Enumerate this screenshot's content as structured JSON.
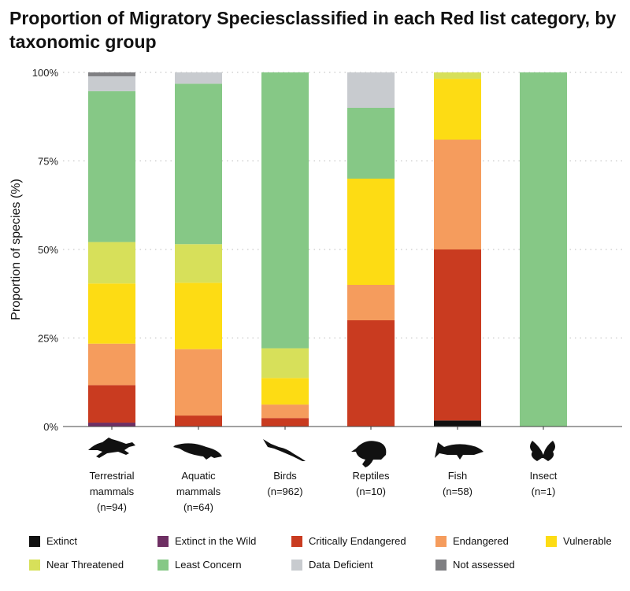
{
  "chart_data": {
    "type": "bar",
    "stacked": true,
    "title": "Proportion of Migratory Speciesclassified in each Red list category, by taxonomic group",
    "ylabel": "Proportion of species (%)",
    "xlabel": "",
    "ylim": [
      0,
      100
    ],
    "yticks": [
      "0%",
      "25%",
      "50%",
      "75%",
      "100%"
    ],
    "grid": "horizontal dotted",
    "legend_placement": "bottom",
    "categories": [
      {
        "label1": "Terrestrial",
        "label2": "mammals",
        "n": "(n=94)",
        "icon": "running-mammal-icon"
      },
      {
        "label1": "Aquatic",
        "label2": "mammals",
        "n": "(n=64)",
        "icon": "whale-icon"
      },
      {
        "label1": "Birds",
        "label2": "",
        "n": "(n=962)",
        "icon": "bird-icon"
      },
      {
        "label1": "Reptiles",
        "label2": "",
        "n": "(n=10)",
        "icon": "turtle-icon"
      },
      {
        "label1": "Fish",
        "label2": "",
        "n": "(n=58)",
        "icon": "shark-icon"
      },
      {
        "label1": "Insect",
        "label2": "",
        "n": "(n=1)",
        "icon": "butterfly-icon"
      }
    ],
    "series": [
      {
        "name": "Extinct",
        "color": "#111111",
        "values": [
          0,
          0,
          0,
          0,
          1.7,
          0
        ]
      },
      {
        "name": "Extinct in the Wild",
        "color": "#6e2f63",
        "values": [
          1.1,
          0,
          0,
          0,
          0,
          0
        ]
      },
      {
        "name": "Critically Endangered",
        "color": "#c93b20",
        "values": [
          10.6,
          3.1,
          2.4,
          30,
          48.3,
          0
        ]
      },
      {
        "name": "Endangered",
        "color": "#f59c5d",
        "values": [
          11.7,
          18.75,
          3.8,
          10,
          31.0,
          0
        ]
      },
      {
        "name": "Vulnerable",
        "color": "#fddc14",
        "values": [
          17.0,
          18.75,
          7.5,
          30,
          17.2,
          0
        ]
      },
      {
        "name": "Near Threatened",
        "color": "#d7e05a",
        "values": [
          11.7,
          10.9,
          8.4,
          0,
          1.8,
          0
        ]
      },
      {
        "name": "Least Concern",
        "color": "#86c886",
        "values": [
          42.6,
          45.3,
          77.9,
          20,
          0,
          100
        ]
      },
      {
        "name": "Data Deficient",
        "color": "#c8cbcf",
        "values": [
          4.2,
          3.2,
          0,
          10,
          0,
          0
        ]
      },
      {
        "name": "Not assessed",
        "color": "#7f7f82",
        "values": [
          1.1,
          0,
          0,
          0,
          0,
          0
        ]
      }
    ]
  }
}
